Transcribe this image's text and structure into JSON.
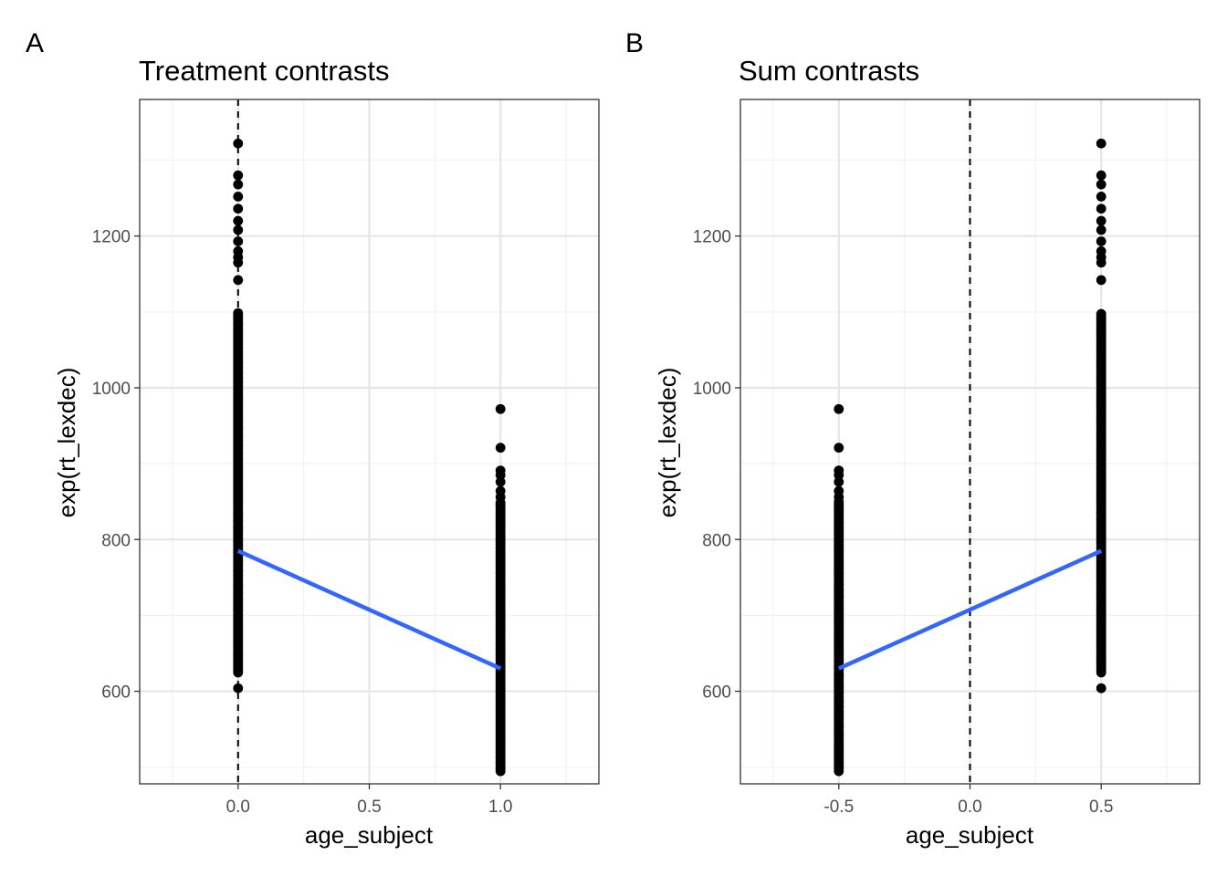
{
  "panel_tags": [
    "A",
    "B"
  ],
  "chart_data": [
    {
      "type": "scatter",
      "tag": "A",
      "title": "Treatment contrasts",
      "xlabel": "age_subject",
      "ylabel": "exp(rt_lexdec)",
      "xlim": [
        -0.375,
        1.375
      ],
      "ylim": [
        478,
        1380
      ],
      "x_ticks": [
        0.0,
        0.5,
        1.0
      ],
      "x_tick_labels": [
        "0.0",
        "0.5",
        "1.0"
      ],
      "x_minor_ticks": [
        -0.25,
        0.25,
        0.75,
        1.25
      ],
      "y_ticks": [
        600,
        800,
        1000,
        1200
      ],
      "y_tick_labels": [
        "600",
        "800",
        "1000",
        "1200"
      ],
      "y_minor_ticks": [
        500,
        700,
        900,
        1100,
        1300
      ],
      "grid": true,
      "reference_line": {
        "orientation": "vertical",
        "x": 0.0,
        "style": "dashed"
      },
      "series": [
        {
          "x": 0.0,
          "points_color": "#000000",
          "y_min": 604,
          "y_dense_range": [
            625,
            1100
          ],
          "y_outliers": [
            1142,
            1165,
            1172,
            1180,
            1193,
            1208,
            1220,
            1236,
            1252,
            1268,
            1280,
            1322
          ]
        },
        {
          "x": 1.0,
          "points_color": "#000000",
          "y_dense_range": [
            495,
            850
          ],
          "y_outliers": [
            856,
            864,
            876,
            885,
            891,
            921,
            972
          ]
        }
      ],
      "regression_line": {
        "color": "#3366FF",
        "x": [
          0.0,
          1.0
        ],
        "y": [
          785,
          630
        ]
      }
    },
    {
      "type": "scatter",
      "tag": "B",
      "title": "Sum contrasts",
      "xlabel": "age_subject",
      "ylabel": "exp(rt_lexdec)",
      "xlim": [
        -0.875,
        0.875
      ],
      "ylim": [
        478,
        1380
      ],
      "x_ticks": [
        -0.5,
        0.0,
        0.5
      ],
      "x_tick_labels": [
        "-0.5",
        "0.0",
        "0.5"
      ],
      "x_minor_ticks": [
        -0.75,
        -0.25,
        0.25,
        0.75
      ],
      "y_ticks": [
        600,
        800,
        1000,
        1200
      ],
      "y_tick_labels": [
        "600",
        "800",
        "1000",
        "1200"
      ],
      "y_minor_ticks": [
        500,
        700,
        900,
        1100,
        1300
      ],
      "grid": true,
      "reference_line": {
        "orientation": "vertical",
        "x": 0.0,
        "style": "dashed"
      },
      "series": [
        {
          "x": -0.5,
          "points_color": "#000000",
          "y_dense_range": [
            495,
            850
          ],
          "y_outliers": [
            856,
            864,
            876,
            885,
            891,
            921,
            972
          ]
        },
        {
          "x": 0.5,
          "points_color": "#000000",
          "y_min": 604,
          "y_dense_range": [
            625,
            1100
          ],
          "y_outliers": [
            1142,
            1165,
            1172,
            1180,
            1193,
            1208,
            1220,
            1236,
            1252,
            1268,
            1280,
            1322
          ]
        }
      ],
      "regression_line": {
        "color": "#3366FF",
        "x": [
          -0.5,
          0.5
        ],
        "y": [
          630,
          785
        ]
      }
    }
  ]
}
